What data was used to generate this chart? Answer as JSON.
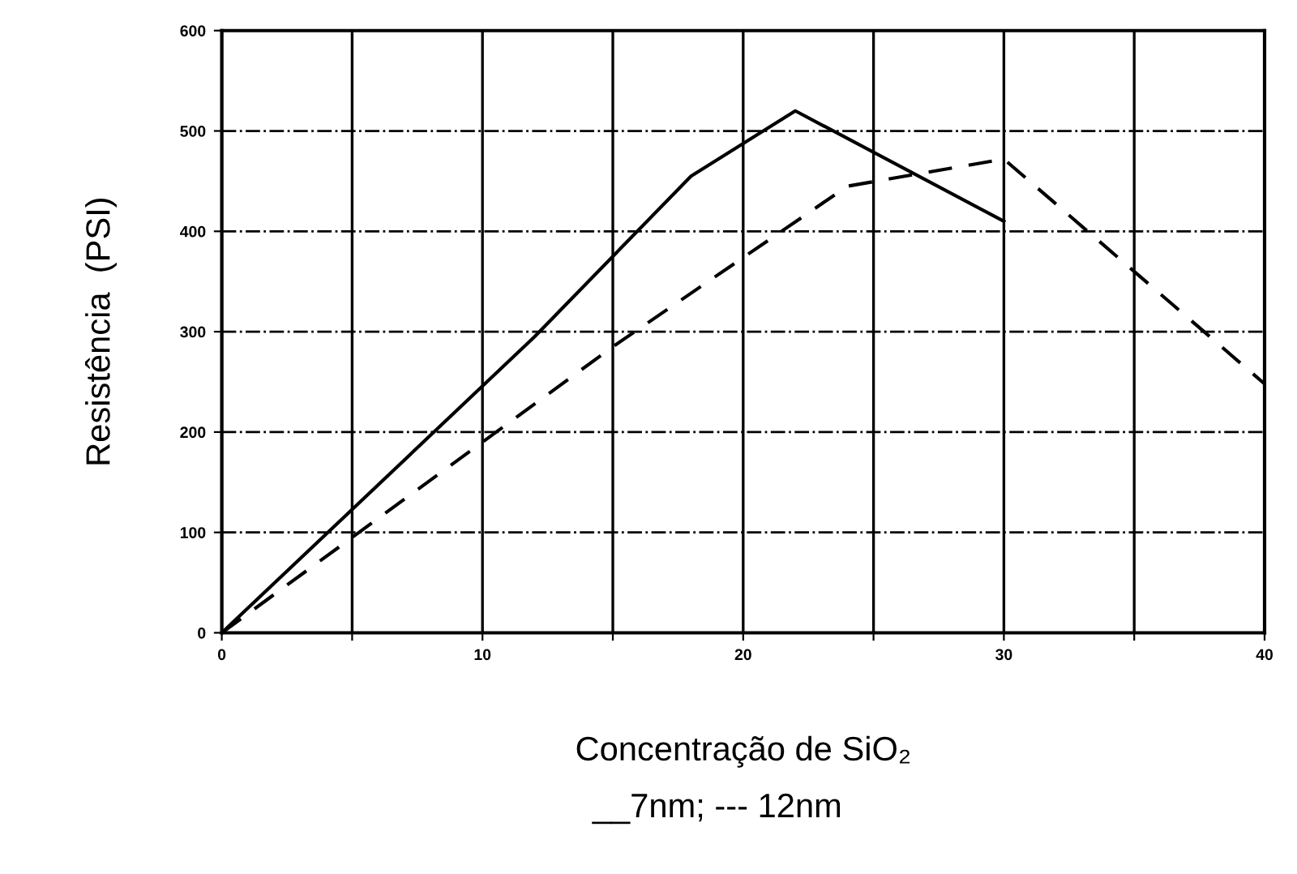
{
  "chart_data": {
    "type": "line",
    "xlabel": "Concentração de SiO₂",
    "ylabel": "Resistência  (PSI)",
    "annotations": [
      "__7nm; --- 12nm"
    ],
    "xlim": [
      0,
      40
    ],
    "ylim": [
      0,
      600
    ],
    "xticks": [
      0,
      {
        "value": 5,
        "label": null
      },
      10,
      {
        "value": 15,
        "label": null
      },
      20,
      {
        "value": 25,
        "label": null
      },
      30,
      {
        "value": 35,
        "label": null
      },
      40
    ],
    "yticks": [
      0,
      100,
      200,
      300,
      400,
      500,
      600
    ],
    "grid": true,
    "marker": "none",
    "series": [
      {
        "color": "#000000",
        "line_style": "solid",
        "x": [
          0,
          12,
          18,
          22,
          30
        ],
        "values": [
          0,
          295,
          455,
          520,
          410
        ]
      },
      {
        "color": "#000000",
        "line_style": "dashed",
        "x": [
          0,
          10,
          15,
          24,
          30,
          40
        ],
        "values": [
          0,
          190,
          285,
          445,
          472,
          248
        ]
      }
    ]
  }
}
